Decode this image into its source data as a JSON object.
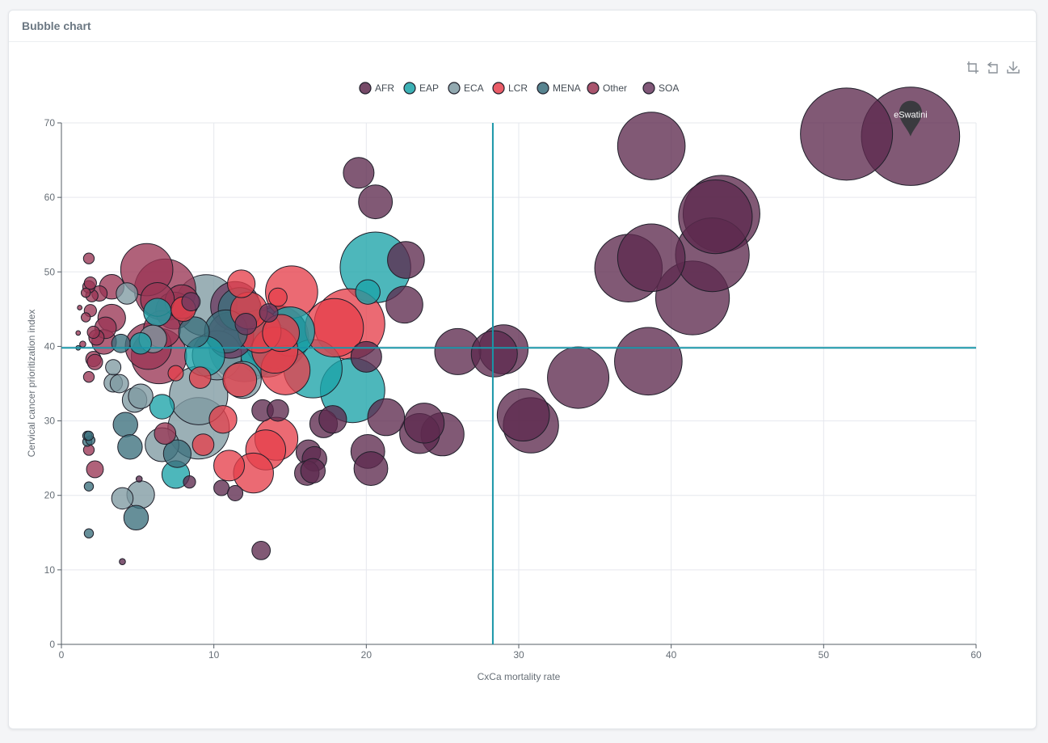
{
  "card": {
    "title": "Bubble chart"
  },
  "toolbox": {
    "icons": [
      "crop-icon",
      "restore-icon",
      "download-icon"
    ]
  },
  "colors": {
    "AFR": "#5e2a4e",
    "EAP": "#1ba3a8",
    "ECA": "#7f9aa2",
    "LCR": "#e6404c",
    "MENA": "#3b6f7c",
    "Other": "#9a3654",
    "SOA": "#6b3a60",
    "markLine": "#1996a8",
    "grid": "#e6e8ee",
    "axis": "#555e66",
    "text": "#666e76"
  },
  "chart_data": {
    "type": "scatter",
    "xlabel": "CxCa mortality rate",
    "ylabel": "Cervical cancer prioritization index",
    "xlim": [
      0,
      60
    ],
    "ylim": [
      0,
      70
    ],
    "xticks": [
      0,
      10,
      20,
      30,
      40,
      50,
      60
    ],
    "yticks": [
      0,
      10,
      20,
      30,
      40,
      50,
      60,
      70
    ],
    "legend_position": "top-center",
    "reference_lines": {
      "x": 28.3,
      "y": 39.8
    },
    "annotation": {
      "label": "eSwatini",
      "x": 55.7,
      "y": 68.2
    },
    "series": [
      {
        "name": "AFR",
        "points": [
          [
            19.5,
            63.3,
            1.0
          ],
          [
            20.6,
            59.4,
            1.1
          ],
          [
            22.6,
            51.6,
            1.2
          ],
          [
            22.5,
            45.6,
            1.2
          ],
          [
            26.0,
            39.3,
            1.5
          ],
          [
            28.4,
            39.0,
            1.5
          ],
          [
            29.0,
            39.6,
            1.6
          ],
          [
            20.0,
            38.6,
            1.0
          ],
          [
            30.3,
            30.8,
            1.7
          ],
          [
            30.8,
            29.4,
            1.8
          ],
          [
            33.9,
            35.8,
            2.0
          ],
          [
            38.5,
            38.0,
            2.2
          ],
          [
            37.2,
            50.5,
            2.2
          ],
          [
            38.7,
            51.9,
            2.2
          ],
          [
            38.7,
            66.9,
            2.2
          ],
          [
            41.4,
            46.5,
            2.4
          ],
          [
            42.7,
            52.3,
            2.4
          ],
          [
            42.9,
            57.4,
            2.4
          ],
          [
            43.3,
            57.8,
            2.5
          ],
          [
            51.5,
            68.5,
            3.0
          ],
          [
            55.7,
            68.2,
            3.2
          ],
          [
            21.3,
            30.5,
            1.2
          ],
          [
            23.5,
            28.3,
            1.3
          ],
          [
            23.8,
            29.7,
            1.3
          ],
          [
            25.0,
            28.2,
            1.4
          ],
          [
            17.2,
            29.6,
            0.9
          ],
          [
            17.8,
            30.2,
            0.9
          ],
          [
            20.1,
            25.9,
            1.1
          ],
          [
            20.3,
            23.6,
            1.1
          ],
          [
            16.2,
            25.8,
            0.8
          ],
          [
            16.6,
            24.9,
            0.8
          ],
          [
            16.1,
            23.0,
            0.8
          ],
          [
            16.5,
            23.3,
            0.8
          ],
          [
            13.2,
            31.4,
            0.7
          ],
          [
            14.2,
            31.4,
            0.7
          ],
          [
            10.5,
            21.0,
            0.5
          ],
          [
            11.4,
            20.3,
            0.5
          ],
          [
            13.1,
            12.6,
            0.6
          ],
          [
            8.4,
            21.8,
            0.4
          ],
          [
            4.0,
            11.1,
            0.2
          ],
          [
            5.1,
            22.2,
            0.2
          ]
        ]
      },
      {
        "name": "EAP",
        "points": [
          [
            20.6,
            50.6,
            2.3
          ],
          [
            19.1,
            34.1,
            2.1
          ],
          [
            16.5,
            37.0,
            1.9
          ],
          [
            20.1,
            47.3,
            0.8
          ],
          [
            9.4,
            38.7,
            1.3
          ],
          [
            6.6,
            31.9,
            0.8
          ],
          [
            7.5,
            22.8,
            0.9
          ],
          [
            6.3,
            44.6,
            0.9
          ],
          [
            5.2,
            40.4,
            0.7
          ],
          [
            13.5,
            39.6,
            1.8
          ],
          [
            15.0,
            42.0,
            1.6
          ]
        ]
      },
      {
        "name": "ECA",
        "points": [
          [
            9.5,
            45.5,
            2.0
          ],
          [
            9.0,
            29.0,
            2.0
          ],
          [
            9.0,
            33.4,
            1.9
          ],
          [
            11.9,
            35.5,
            1.2
          ],
          [
            6.6,
            26.8,
            1.1
          ],
          [
            5.2,
            20.1,
            0.9
          ],
          [
            4.0,
            19.6,
            0.7
          ],
          [
            4.8,
            32.8,
            0.8
          ],
          [
            3.4,
            35.1,
            0.6
          ],
          [
            3.8,
            35.0,
            0.6
          ],
          [
            4.3,
            47.1,
            0.7
          ],
          [
            3.4,
            37.2,
            0.5
          ],
          [
            6.0,
            41.0,
            0.9
          ],
          [
            10.2,
            38.8,
            1.6
          ],
          [
            5.2,
            33.3,
            0.8
          ]
        ]
      },
      {
        "name": "LCR",
        "points": [
          [
            18.9,
            43.0,
            2.3
          ],
          [
            17.9,
            42.5,
            1.9
          ],
          [
            15.1,
            47.3,
            1.7
          ],
          [
            14.7,
            36.8,
            1.6
          ],
          [
            14.1,
            27.6,
            1.4
          ],
          [
            13.4,
            26.1,
            1.3
          ],
          [
            12.6,
            23.0,
            1.3
          ],
          [
            11.0,
            24.0,
            1.0
          ],
          [
            10.6,
            30.2,
            0.9
          ],
          [
            11.7,
            35.5,
            1.1
          ],
          [
            11.8,
            48.4,
            0.9
          ],
          [
            9.1,
            35.8,
            0.7
          ],
          [
            9.3,
            26.8,
            0.7
          ],
          [
            13.0,
            42.0,
            1.4
          ],
          [
            14.2,
            46.6,
            0.6
          ],
          [
            14.4,
            41.8,
            1.2
          ],
          [
            14.0,
            39.5,
            1.5
          ],
          [
            7.5,
            36.4,
            0.5
          ],
          [
            8.0,
            45.0,
            0.8
          ],
          [
            12.3,
            44.8,
            1.2
          ]
        ]
      },
      {
        "name": "MENA",
        "points": [
          [
            11.7,
            45.0,
            1.4
          ],
          [
            14.2,
            41.2,
            2.0
          ],
          [
            12.0,
            40.0,
            2.3
          ],
          [
            8.7,
            41.9,
            1.0
          ],
          [
            4.2,
            29.5,
            0.8
          ],
          [
            4.5,
            26.5,
            0.8
          ],
          [
            4.9,
            17.0,
            0.8
          ],
          [
            3.9,
            40.4,
            0.6
          ],
          [
            1.8,
            21.2,
            0.3
          ],
          [
            1.8,
            14.9,
            0.3
          ],
          [
            1.7,
            27.2,
            0.3
          ],
          [
            1.9,
            27.4,
            0.3
          ],
          [
            1.7,
            28.0,
            0.3
          ],
          [
            1.8,
            28.0,
            0.3
          ],
          [
            1.1,
            39.8,
            0.15
          ],
          [
            7.6,
            25.6,
            0.9
          ],
          [
            10.8,
            42.0,
            1.4
          ]
        ]
      },
      {
        "name": "Other",
        "points": [
          [
            5.6,
            50.3,
            1.7
          ],
          [
            6.8,
            47.6,
            2.0
          ],
          [
            6.4,
            38.7,
            1.8
          ],
          [
            5.7,
            40.0,
            1.5
          ],
          [
            7.4,
            44.8,
            1.2
          ],
          [
            7.9,
            46.0,
            1.1
          ],
          [
            6.3,
            46.3,
            1.1
          ],
          [
            6.6,
            42.3,
            1.2
          ],
          [
            3.3,
            48.0,
            0.8
          ],
          [
            3.3,
            43.8,
            0.9
          ],
          [
            2.8,
            40.6,
            0.8
          ],
          [
            2.9,
            42.5,
            0.7
          ],
          [
            2.1,
            38.3,
            0.5
          ],
          [
            2.2,
            37.9,
            0.5
          ],
          [
            2.3,
            41.2,
            0.5
          ],
          [
            2.1,
            41.9,
            0.4
          ],
          [
            2.0,
            46.8,
            0.4
          ],
          [
            2.5,
            47.1,
            0.5
          ],
          [
            1.8,
            48.0,
            0.4
          ],
          [
            1.9,
            48.5,
            0.4
          ],
          [
            1.6,
            47.2,
            0.3
          ],
          [
            1.9,
            44.8,
            0.4
          ],
          [
            1.8,
            51.8,
            0.35
          ],
          [
            1.6,
            43.9,
            0.3
          ],
          [
            1.8,
            35.9,
            0.35
          ],
          [
            1.8,
            26.1,
            0.35
          ],
          [
            2.2,
            23.5,
            0.55
          ],
          [
            1.2,
            45.2,
            0.15
          ],
          [
            1.1,
            41.8,
            0.15
          ],
          [
            1.4,
            40.3,
            0.2
          ],
          [
            6.8,
            28.3,
            0.7
          ]
        ]
      },
      {
        "name": "SOA",
        "points": [
          [
            11.4,
            45.4,
            1.6
          ],
          [
            11.1,
            41.5,
            1.5
          ],
          [
            14.1,
            41.2,
            2.1
          ],
          [
            8.5,
            46.0,
            0.6
          ],
          [
            13.6,
            44.5,
            0.6
          ],
          [
            12.1,
            43.0,
            0.7
          ]
        ]
      }
    ]
  }
}
